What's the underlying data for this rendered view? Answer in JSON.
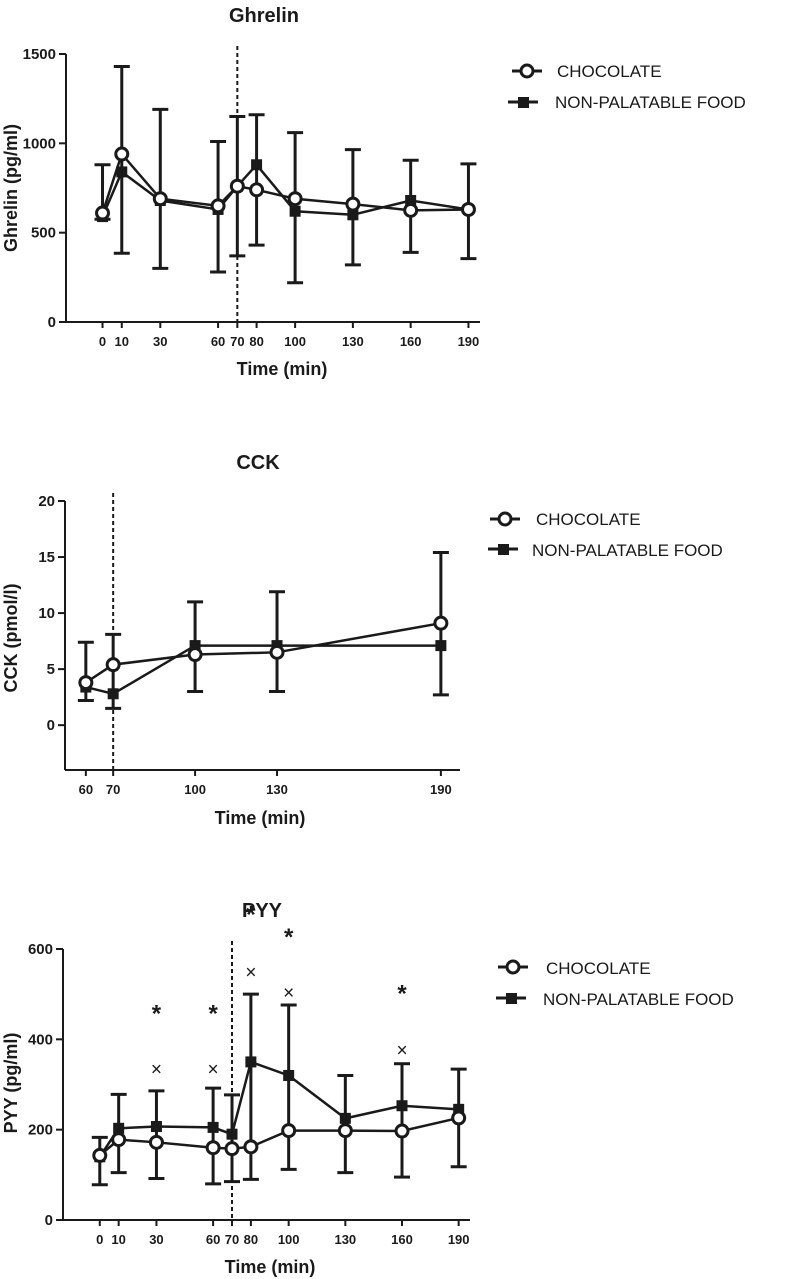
{
  "figure": {
    "chart_data": [
      {
        "type": "line",
        "title": "Ghrelin",
        "xlabel": "Time (min)",
        "ylabel": "Ghrelin (pg/ml)",
        "x_ticks": [
          0,
          10,
          30,
          60,
          70,
          80,
          100,
          130,
          160,
          190
        ],
        "y_ticks": [
          0,
          500,
          1000,
          1500
        ],
        "ylim": [
          0,
          1500
        ],
        "marker_line_x": 70,
        "error_bars": "mean with upper/lower error bars",
        "series": [
          {
            "name": "CHOCOLATE",
            "marker": "open-circle",
            "x": [
              0,
              10,
              30,
              60,
              70,
              80,
              100,
              130,
              160,
              190
            ],
            "y": [
              610,
              940,
              690,
              650,
              760,
              740,
              690,
              660,
              625,
              630
            ],
            "err_low": [
              575,
              385,
              300,
              280,
              370,
              430,
              220,
              320,
              390,
              355
            ],
            "err_high": [
              880,
              1430,
              1190,
              1010,
              1150,
              1160,
              1060,
              965,
              905,
              885
            ]
          },
          {
            "name": "NON-PALATABLE FOOD",
            "marker": "filled-square",
            "x": [
              0,
              10,
              30,
              60,
              70,
              80,
              100,
              130,
              160,
              190
            ],
            "y": [
              590,
              840,
              680,
              630,
              760,
              880,
              620,
              600,
              680,
              630
            ],
            "err_low": [
              575,
              385,
              300,
              280,
              370,
              430,
              220,
              320,
              390,
              355
            ],
            "err_high": [
              880,
              1430,
              1190,
              1010,
              1150,
              1160,
              1060,
              965,
              905,
              885
            ]
          }
        ],
        "annotations": []
      },
      {
        "type": "line",
        "title": "CCK",
        "xlabel": "Time (min)",
        "ylabel": "CCK (pmol/l)",
        "x_ticks": [
          60,
          70,
          100,
          130,
          190
        ],
        "y_ticks": [
          0,
          5,
          10,
          15,
          20
        ],
        "ylim": [
          -4,
          20
        ],
        "marker_line_x": 70,
        "error_bars": "mean with upper/lower error bars",
        "series": [
          {
            "name": "CHOCOLATE",
            "marker": "open-circle",
            "x": [
              60,
              70,
              100,
              130,
              190
            ],
            "y": [
              3.8,
              5.4,
              6.3,
              6.5,
              9.1
            ],
            "err_low": [
              2.2,
              1.5,
              3.0,
              3.0,
              2.7
            ],
            "err_high": [
              7.4,
              8.1,
              11.0,
              11.9,
              15.4
            ]
          },
          {
            "name": "NON-PALATABLE FOOD",
            "marker": "filled-square",
            "x": [
              60,
              70,
              100,
              130,
              190
            ],
            "y": [
              3.4,
              2.8,
              7.1,
              7.1,
              7.1
            ],
            "err_low": [
              2.2,
              1.5,
              3.0,
              3.0,
              2.7
            ],
            "err_high": [
              7.4,
              8.1,
              11.0,
              11.9,
              15.4
            ]
          }
        ],
        "annotations": []
      },
      {
        "type": "line",
        "title": "PYY",
        "xlabel": "Time (min)",
        "ylabel": "PYY (pg/ml)",
        "x_ticks": [
          0,
          10,
          30,
          60,
          70,
          80,
          100,
          130,
          160,
          190
        ],
        "y_ticks": [
          0,
          200,
          400,
          600
        ],
        "ylim": [
          0,
          600
        ],
        "marker_line_x": 70,
        "error_bars": "mean with upper/lower error bars",
        "series": [
          {
            "name": "CHOCOLATE",
            "marker": "open-circle",
            "x": [
              0,
              10,
              30,
              60,
              70,
              80,
              100,
              130,
              160,
              190
            ],
            "y": [
              143,
              178,
              172,
              160,
              158,
              162,
              198,
              198,
              197,
              226
            ],
            "err_low": [
              78,
              105,
              92,
              80,
              85,
              90,
              112,
              105,
              95,
              118
            ],
            "err_high": [
              183,
              278,
              286,
              292,
              277,
              500,
              476,
              320,
              346,
              334
            ]
          },
          {
            "name": "NON-PALATABLE FOOD",
            "marker": "filled-square",
            "x": [
              0,
              10,
              30,
              60,
              70,
              80,
              100,
              130,
              160,
              190
            ],
            "y": [
              140,
              203,
              207,
              205,
              190,
              350,
              320,
              225,
              253,
              245
            ],
            "err_low": [
              78,
              105,
              92,
              80,
              85,
              90,
              112,
              105,
              95,
              118
            ],
            "err_high": [
              183,
              278,
              286,
              292,
              277,
              500,
              476,
              320,
              346,
              334
            ]
          }
        ],
        "annotations": [
          {
            "x": 30,
            "star": "*",
            "cross": "×",
            "star_y": 470,
            "cross_y": 335
          },
          {
            "x": 60,
            "star": "*",
            "cross": "×",
            "star_y": 470,
            "cross_y": 335
          },
          {
            "x": 80,
            "star": "*",
            "cross": "×",
            "star_y": 690,
            "cross_y": 550
          },
          {
            "x": 100,
            "star": "*",
            "cross": "×",
            "star_y": 640,
            "cross_y": 505
          },
          {
            "x": 160,
            "star": "*",
            "cross": "×",
            "star_y": 515,
            "cross_y": 378
          }
        ]
      }
    ]
  }
}
